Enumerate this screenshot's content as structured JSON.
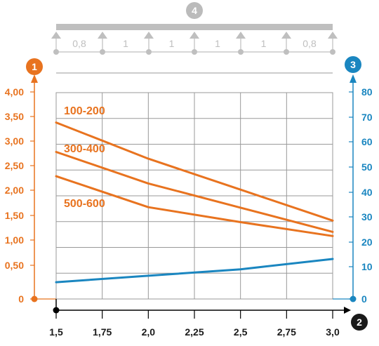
{
  "chart_data": {
    "type": "line",
    "x": [
      1.5,
      2.0,
      2.5,
      3.0
    ],
    "x_ticks": [
      "1,5",
      "1,75",
      "2,0",
      "2,25",
      "2,5",
      "2,75",
      "3,0"
    ],
    "xlim": [
      1.5,
      3.0
    ],
    "y_left_ticks": [
      "0",
      "0,50",
      "1,00",
      "1,50",
      "2,00",
      "2,50",
      "3,00",
      "3,50",
      "4,00"
    ],
    "y_left_lim": [
      0,
      4.0
    ],
    "y_right_ticks": [
      "0",
      "10",
      "20",
      "30",
      "40",
      "50",
      "60",
      "70",
      "80"
    ],
    "y_right_lim": [
      0,
      80
    ],
    "grid": true,
    "series": [
      {
        "name": "100-200",
        "axis": "left",
        "color": "#e8731f",
        "x": [
          1.5,
          2.0,
          2.5,
          3.0
        ],
        "values": [
          3.42,
          2.72,
          2.12,
          1.52
        ]
      },
      {
        "name": "300-400",
        "axis": "left",
        "color": "#e8731f",
        "x": [
          1.5,
          2.0,
          2.5,
          3.0
        ],
        "values": [
          2.85,
          2.24,
          1.77,
          1.3
        ]
      },
      {
        "name": "500-600",
        "axis": "left",
        "color": "#e8731f",
        "x": [
          1.5,
          2.0,
          2.5,
          3.0
        ],
        "values": [
          2.38,
          1.78,
          1.49,
          1.22
        ]
      },
      {
        "name": "",
        "axis": "right",
        "color": "#1a86c0",
        "x": [
          1.5,
          2.0,
          2.5,
          3.0
        ],
        "values": [
          6.5,
          9.0,
          11.5,
          15.5
        ]
      }
    ],
    "badges": {
      "left_axis": "1",
      "x_axis": "2",
      "right_axis": "3",
      "span": "4"
    },
    "span_labels": [
      "0,8",
      "1",
      "1",
      "1",
      "1",
      "0,8"
    ],
    "colors": {
      "left": "#e8731f",
      "right": "#1a86c0",
      "grid": "#999999",
      "support": "#bfbfbf",
      "badge_gray": "#bbbbbb"
    }
  }
}
